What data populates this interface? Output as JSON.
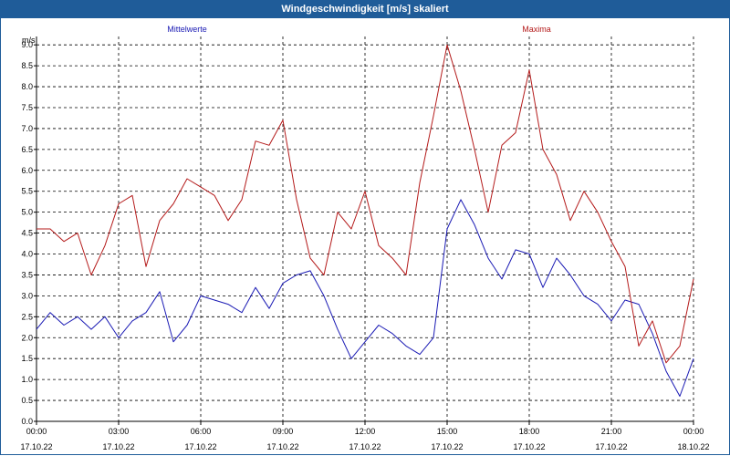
{
  "window": {
    "title": "Windgeschwindigkeit [m/s] skaliert"
  },
  "colors": {
    "mean": "#1a1ab4",
    "max": "#b41a1a",
    "titlebar": "#1f5c99"
  },
  "chart_data": {
    "type": "line",
    "title": "Windgeschwindigkeit [m/s] skaliert",
    "ylabel": "m/s",
    "ylim": [
      0,
      9.2
    ],
    "yticks": [
      "0.0",
      "0.5",
      "1.0",
      "1.5",
      "2.0",
      "2.5",
      "3.0",
      "3.5",
      "4.0",
      "4.5",
      "5.0",
      "5.5",
      "6.0",
      "6.5",
      "7.0",
      "7.5",
      "8.0",
      "8.5",
      "9.0"
    ],
    "xticks": [
      {
        "time": "00:00",
        "date": "17.10.22"
      },
      {
        "time": "03:00",
        "date": "17.10.22"
      },
      {
        "time": "06:00",
        "date": "17.10.22"
      },
      {
        "time": "09:00",
        "date": "17.10.22"
      },
      {
        "time": "12:00",
        "date": "17.10.22"
      },
      {
        "time": "15:00",
        "date": "17.10.22"
      },
      {
        "time": "18:00",
        "date": "17.10.22"
      },
      {
        "time": "21:00",
        "date": "17.10.22"
      },
      {
        "time": "00:00",
        "date": "18.10.22"
      }
    ],
    "x_hours": [
      0,
      0.5,
      1,
      1.5,
      2,
      2.5,
      3,
      3.5,
      4,
      4.5,
      5,
      5.5,
      6,
      6.5,
      7,
      7.5,
      8,
      8.5,
      9,
      9.5,
      10,
      10.5,
      11,
      11.5,
      12,
      12.5,
      13,
      13.5,
      14,
      14.5,
      15,
      15.5,
      16,
      16.5,
      17,
      17.5,
      18,
      18.5,
      19,
      19.5,
      20,
      20.5,
      21,
      21.5,
      22,
      22.5,
      23,
      23.5,
      24
    ],
    "grid": true,
    "series": [
      {
        "name": "Mittelwerte",
        "values": [
          2.2,
          2.6,
          2.3,
          2.5,
          2.2,
          2.5,
          2.0,
          2.4,
          2.6,
          3.1,
          1.9,
          2.3,
          3.0,
          2.9,
          2.8,
          2.6,
          3.2,
          2.7,
          3.3,
          3.5,
          3.6,
          3.0,
          2.2,
          1.5,
          1.9,
          2.3,
          2.1,
          1.8,
          1.6,
          2.0,
          4.6,
          5.3,
          4.7,
          3.9,
          3.4,
          4.1,
          4.0,
          3.2,
          3.9,
          3.5,
          3.0,
          2.8,
          2.4,
          2.9,
          2.8,
          2.1,
          1.2,
          0.6,
          1.5
        ]
      },
      {
        "name": "Maxima",
        "values": [
          4.6,
          4.6,
          4.3,
          4.5,
          3.5,
          4.2,
          5.2,
          5.4,
          3.7,
          4.8,
          5.2,
          5.8,
          5.6,
          5.4,
          4.8,
          5.3,
          6.7,
          6.6,
          7.2,
          5.3,
          3.9,
          3.5,
          5.0,
          4.6,
          5.5,
          4.2,
          3.9,
          3.5,
          5.7,
          7.3,
          9.0,
          7.9,
          6.5,
          5.0,
          6.6,
          6.9,
          8.4,
          6.5,
          5.9,
          4.8,
          5.5,
          5.0,
          4.3,
          3.7,
          1.8,
          2.4,
          1.4,
          1.8,
          3.4
        ]
      }
    ]
  }
}
